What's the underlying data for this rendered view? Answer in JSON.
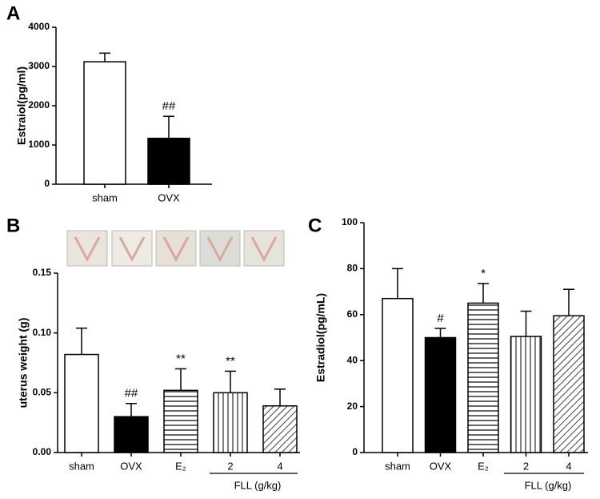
{
  "chart_data": [
    {
      "type": "bar",
      "panel": "A",
      "ylabel": "Estraiol(pg/ml)",
      "categories": [
        "sham",
        "OVX"
      ],
      "values": [
        3120,
        1170
      ],
      "errors": [
        220,
        560
      ],
      "patterns": [
        "none",
        "solid"
      ],
      "annotations": [
        null,
        "##"
      ],
      "ylim": [
        0,
        4000
      ],
      "yticks": [
        0,
        1000,
        2000,
        3000,
        4000
      ]
    },
    {
      "type": "bar",
      "panel": "B",
      "ylabel": "uterus weight (g)",
      "categories": [
        "sham",
        "OVX",
        "E₂",
        "2",
        "4"
      ],
      "values": [
        0.082,
        0.03,
        0.052,
        0.05,
        0.039
      ],
      "errors": [
        0.022,
        0.011,
        0.018,
        0.018,
        0.014
      ],
      "patterns": [
        "none",
        "solid",
        "horizontal",
        "vertical",
        "diagonal"
      ],
      "annotations": [
        null,
        "##",
        "**",
        "**",
        null
      ],
      "group_label": "FLL (g/kg)",
      "ylim": [
        0,
        0.15
      ],
      "yticks": [
        {
          "value": 0,
          "label": "0.00"
        },
        {
          "value": 0.05,
          "label": "0.05"
        },
        {
          "value": 0.1,
          "label": "0.10"
        },
        {
          "value": 0.15,
          "label": "0.15"
        }
      ]
    },
    {
      "type": "bar",
      "panel": "C",
      "ylabel": "Estradiol(pg/mL)",
      "categories": [
        "sham",
        "OVX",
        "E₂",
        "2",
        "4"
      ],
      "values": [
        67,
        50,
        65,
        50.5,
        59.5
      ],
      "errors": [
        13,
        4,
        8.5,
        11,
        11.5
      ],
      "patterns": [
        "none",
        "solid",
        "horizontal",
        "vertical",
        "diagonal"
      ],
      "annotations": [
        null,
        "#",
        "*",
        null,
        null
      ],
      "group_label": "FLL (g/kg)",
      "ylim": [
        0,
        100
      ],
      "yticks": [
        0,
        20,
        40,
        60,
        80,
        100
      ]
    }
  ]
}
